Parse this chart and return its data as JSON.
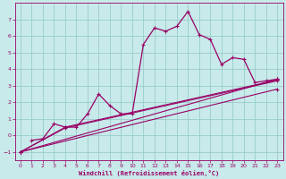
{
  "bg_color": "#c8eaea",
  "line_color": "#990066",
  "grid_color": "#99cccc",
  "xlim": [
    -0.5,
    23.5
  ],
  "ylim": [
    -1.5,
    8.0
  ],
  "yticks": [
    -1,
    0,
    1,
    2,
    3,
    4,
    5,
    6,
    7
  ],
  "xticks": [
    0,
    1,
    2,
    3,
    4,
    5,
    6,
    7,
    8,
    9,
    10,
    11,
    12,
    13,
    14,
    15,
    16,
    17,
    18,
    19,
    20,
    21,
    22,
    23
  ],
  "xlabel": "Windchill (Refroidissement éolien,°C)",
  "line1_x": [
    1,
    2,
    3,
    4,
    5,
    6,
    7,
    8,
    9,
    10,
    11,
    12,
    13,
    14,
    15,
    16,
    17,
    18,
    19,
    20,
    21,
    22,
    23
  ],
  "line1_y": [
    -0.3,
    -0.2,
    0.7,
    0.5,
    0.5,
    1.3,
    2.5,
    1.8,
    1.3,
    1.3,
    5.5,
    6.5,
    6.3,
    6.6,
    7.5,
    6.1,
    5.8,
    4.3,
    4.7,
    4.6,
    3.2,
    3.3,
    3.4
  ],
  "line2_x": [
    0,
    4,
    23
  ],
  "line2_y": [
    -1.0,
    0.5,
    3.35
  ],
  "line3_x": [
    0,
    4,
    23
  ],
  "line3_y": [
    -1.0,
    0.45,
    3.3
  ],
  "line4_x": [
    0,
    23
  ],
  "line4_y": [
    -1.0,
    3.4
  ],
  "line5_x": [
    0,
    23
  ],
  "line5_y": [
    -1.0,
    2.8
  ]
}
